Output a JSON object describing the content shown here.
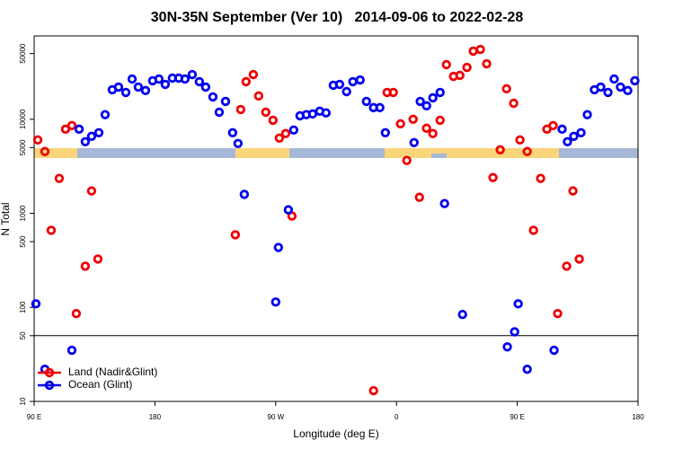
{
  "chart_data": {
    "type": "scatter",
    "title": "30N-35N September (Ver 10)   2014-09-06 to 2022-02-28",
    "x_label": "Longitude (deg E)",
    "y_label": "N Total",
    "xlim": [
      90,
      540
    ],
    "xticks": [
      {
        "value": 90,
        "label": "90 E"
      },
      180,
      {
        "value": 270,
        "label": "90 W"
      },
      {
        "value": 360,
        "label": "0"
      },
      {
        "value": 450,
        "label": "90 E"
      },
      {
        "value": 540,
        "label": "180"
      }
    ],
    "ylim": [
      10,
      77000
    ],
    "yscale": "log",
    "yticks": [
      10,
      50,
      100,
      500,
      1000,
      5000,
      10000,
      50000
    ],
    "hline": 50,
    "legend": "lower left",
    "series": [
      {
        "name": "Land (Nadir&Glint)",
        "color": "#ee0000",
        "x": [
          92.7,
          98,
          108.7,
          102.7,
          113.4,
          118.1,
          121.4,
          128.1,
          132.8,
          137.5,
          239.9,
          243.9,
          247.9,
          253.3,
          257.3,
          262.6,
          268,
          272.7,
          277.4,
          282.1,
          342.9,
          353,
          357.6,
          363,
          367.7,
          372.4,
          377.1,
          382.4,
          387.1,
          392.5,
          397.2,
          402.5,
          407.2,
          412.5,
          417.2,
          422.5,
          427.2,
          431.9,
          437.3,
          442,
          447.3,
          452,
          457.4,
          462.1,
          467.4,
          472.1,
          476.7,
          480.1,
          486.8,
          491.5,
          496.2
        ],
        "values": [
          6040,
          4540,
          2350,
          660,
          7850,
          8570,
          86,
          274,
          1730,
          327,
          591,
          12700,
          25100,
          29900,
          17700,
          11900,
          9770,
          6310,
          7050,
          936,
          13,
          19300,
          19300,
          8950,
          3650,
          10000,
          1480,
          8030,
          7050,
          9770,
          38100,
          28600,
          29300,
          35600,
          53000,
          55300,
          38900,
          2400,
          4740,
          21100,
          14800,
          6040,
          4540,
          660,
          2350,
          7850,
          8570,
          86,
          274,
          1730,
          327
        ]
      },
      {
        "name": "Ocean (Glint)",
        "color": "#0000ee",
        "x": [
          91.3,
          98,
          118.1,
          123.5,
          128.1,
          132.8,
          138.2,
          142.9,
          148.2,
          152.9,
          158.3,
          163,
          167.6,
          173,
          178.3,
          183,
          187.7,
          193,
          197.7,
          202.4,
          207.8,
          213.1,
          217.8,
          223.2,
          227.9,
          232.6,
          237.9,
          241.9,
          246.6,
          270,
          272,
          279.4,
          283.4,
          288.1,
          292.8,
          297.5,
          302.8,
          307.5,
          312.9,
          317.6,
          322.8,
          327.5,
          332.9,
          337.6,
          342.9,
          347.6,
          351.7,
          373.1,
          377.7,
          382.4,
          387.1,
          392.5,
          395.8,
          409.2,
          442.6,
          448,
          450.7,
          457.4,
          477.4,
          483.4,
          487.4,
          492.1,
          497.5,
          502.2,
          507.5,
          512.2,
          517.6,
          522.2,
          526.9,
          532.3,
          537.6
        ],
        "values": [
          109,
          22,
          35,
          7850,
          5780,
          6590,
          7200,
          11200,
          20600,
          22000,
          19300,
          26800,
          22000,
          20200,
          25700,
          26800,
          23500,
          27400,
          27400,
          26800,
          29900,
          25100,
          22000,
          17300,
          11900,
          15500,
          7200,
          5530,
          1590,
          114,
          434,
          1090,
          7690,
          10900,
          11200,
          11400,
          12200,
          11700,
          23000,
          23500,
          19700,
          25100,
          26200,
          15500,
          13300,
          13300,
          7200,
          5650,
          15500,
          13900,
          16900,
          19300,
          1270,
          84,
          38,
          55,
          109,
          22,
          35,
          7850,
          5780,
          6590,
          7200,
          11200,
          20600,
          22000,
          19300,
          26800,
          22000,
          20200,
          25700
        ]
      }
    ]
  }
}
